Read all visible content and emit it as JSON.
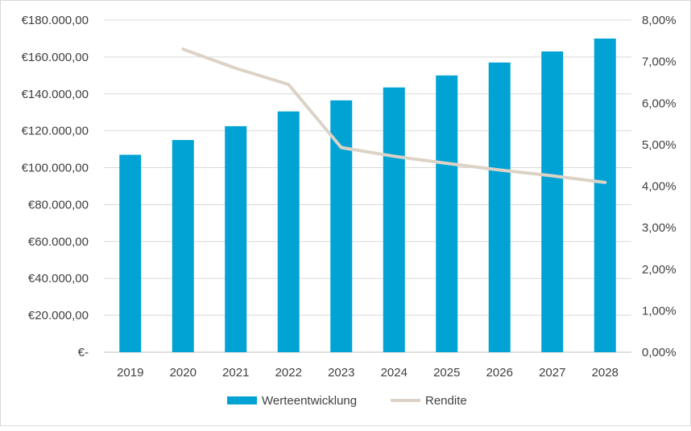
{
  "chart_data": {
    "type": "bar",
    "categories": [
      "2019",
      "2020",
      "2021",
      "2022",
      "2023",
      "2024",
      "2025",
      "2026",
      "2027",
      "2028"
    ],
    "series": [
      {
        "name": "Werteentwicklung",
        "type": "bar",
        "axis": "left",
        "color": "#00a3d4",
        "values": [
          107000,
          115000,
          122500,
          130500,
          136500,
          143500,
          150000,
          157000,
          163000,
          170000
        ]
      },
      {
        "name": "Rendite",
        "type": "line",
        "axis": "right",
        "color": "#ddd2c6",
        "values": [
          null,
          0.073,
          0.0684,
          0.0645,
          0.0493,
          0.0472,
          0.0455,
          0.0439,
          0.0425,
          0.0409
        ]
      }
    ],
    "y_left": {
      "ylim": [
        0,
        180000
      ],
      "ticks": [
        0,
        20000,
        40000,
        60000,
        80000,
        100000,
        120000,
        140000,
        160000,
        180000
      ],
      "tick_labels": [
        "€-",
        "€20.000,00",
        "€40.000,00",
        "€60.000,00",
        "€80.000,00",
        "€100.000,00",
        "€120.000,00",
        "€140.000,00",
        "€160.000,00",
        "€180.000,00"
      ]
    },
    "y_right": {
      "ylim": [
        0,
        0.08
      ],
      "ticks": [
        0,
        0.01,
        0.02,
        0.03,
        0.04,
        0.05,
        0.06,
        0.07,
        0.08
      ],
      "tick_labels": [
        "0,00%",
        "1,00%",
        "2,00%",
        "3,00%",
        "4,00%",
        "5,00%",
        "6,00%",
        "7,00%",
        "8,00%"
      ]
    },
    "grid": true,
    "legend": {
      "position": "bottom",
      "entries": [
        "Werteentwicklung",
        "Rendite"
      ]
    },
    "title": "",
    "xlabel": "",
    "ylabel": ""
  }
}
